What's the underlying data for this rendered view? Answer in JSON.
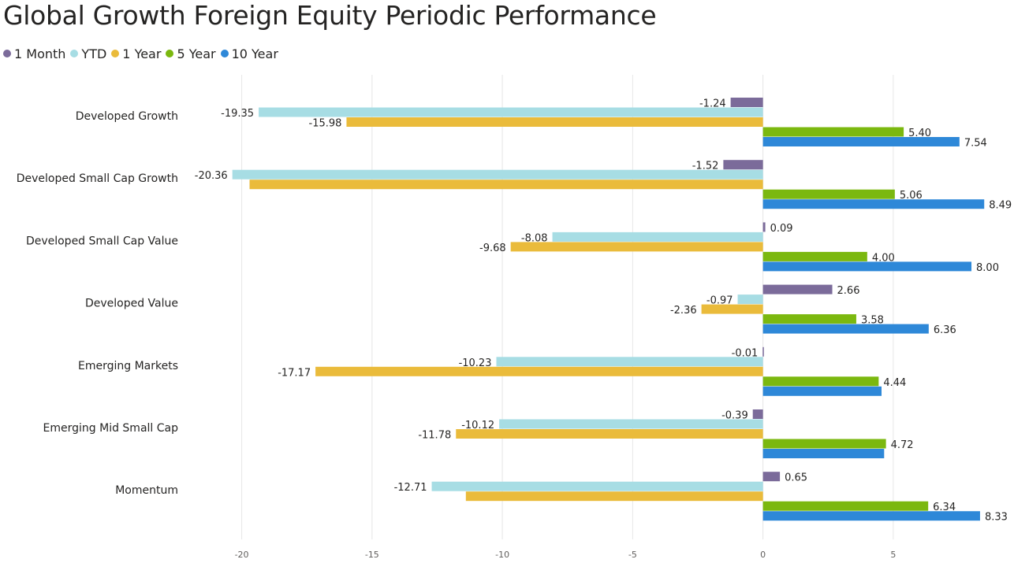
{
  "chart_data": {
    "type": "bar",
    "orientation": "horizontal",
    "title": "Global Growth Foreign Equity Periodic Performance",
    "categories": [
      "Developed Growth",
      "Developed Small Cap Growth",
      "Developed Small Cap Value",
      "Developed Value",
      "Emerging Markets",
      "Emerging Mid Small Cap",
      "Momentum"
    ],
    "series": [
      {
        "name": "1 Month",
        "color": "#7b6b9a",
        "values": [
          -1.24,
          -1.52,
          0.09,
          2.66,
          -0.01,
          -0.39,
          0.65
        ],
        "labels": [
          "-1.24",
          "-1.52",
          "0.09",
          "2.66",
          "-0.01",
          "-0.39",
          "0.65"
        ]
      },
      {
        "name": "YTD",
        "color": "#a7dde4",
        "values": [
          -19.35,
          -20.36,
          -8.08,
          -0.97,
          -10.23,
          -10.12,
          -12.71
        ],
        "labels": [
          "-19.35",
          "-20.36",
          "-8.08",
          "-0.97",
          "-10.23",
          "-10.12",
          "-12.71"
        ]
      },
      {
        "name": "1 Year",
        "color": "#eabb3b",
        "values": [
          -15.98,
          -19.7,
          -9.68,
          -2.36,
          -17.17,
          -11.78,
          -11.4
        ],
        "labels": [
          "-15.98",
          "",
          "-9.68",
          "-2.36",
          "-17.17",
          "-11.78",
          ""
        ]
      },
      {
        "name": "5 Year",
        "color": "#7bb80f",
        "values": [
          5.4,
          5.06,
          4.0,
          3.58,
          4.44,
          4.72,
          6.34
        ],
        "labels": [
          "5.40",
          "5.06",
          "4.00",
          "3.58",
          "4.44",
          "4.72",
          "6.34"
        ]
      },
      {
        "name": "10 Year",
        "color": "#2e88d8",
        "values": [
          7.54,
          8.49,
          8.0,
          6.36,
          4.55,
          4.65,
          8.33
        ],
        "labels": [
          "7.54",
          "8.49",
          "8.00",
          "6.36",
          "",
          "",
          "8.33"
        ]
      }
    ],
    "xlim": [
      -21.5,
      9.3
    ],
    "xticks": [
      -20,
      -15,
      -10,
      -5,
      0,
      5
    ],
    "xtick_labels": [
      "-20",
      "-15",
      "-10",
      "-5",
      "0",
      "5"
    ],
    "grid": true,
    "legend_position": "top-left"
  }
}
